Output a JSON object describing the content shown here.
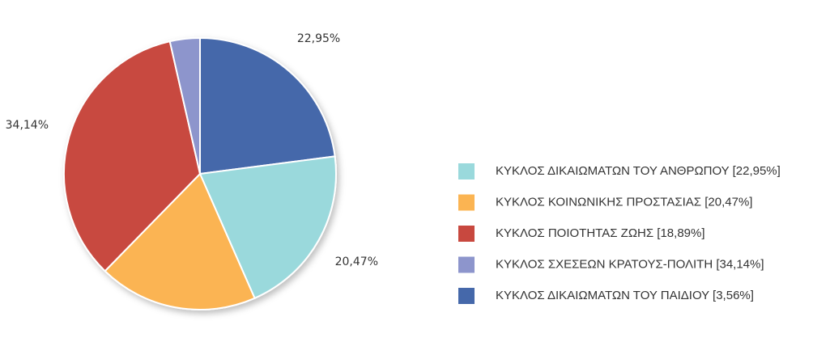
{
  "chart_data": {
    "type": "pie",
    "values": [
      22.95,
      20.47,
      18.89,
      34.14,
      3.56
    ],
    "value_labels": [
      "22,95%",
      "20,47%",
      "18,89%",
      "34,14%",
      "3,56%"
    ],
    "colors": [
      "#4568aa",
      "#9ad9dc",
      "#fbb452",
      "#c8483f",
      "#8d95cc"
    ],
    "legend": [
      {
        "label": "ΚΥΚΛΟΣ ΔΙΚΑΙΩΜΑΤΩΝ ΤΟΥ ΑΝΘΡΩΠΟΥ [22,95%]",
        "color": "#9ad9dc"
      },
      {
        "label": "ΚΥΚΛΟΣ ΚΟΙΝΩΝΙΚΗΣ ΠΡΟΣΤΑΣΙΑΣ [20,47%]",
        "color": "#fbb452"
      },
      {
        "label": "ΚΥΚΛΟΣ ΠΟΙΟΤΗΤΑΣ ΖΩΗΣ [18,89%]",
        "color": "#c8483f"
      },
      {
        "label": "ΚΥΚΛΟΣ ΣΧΕΣΕΩΝ ΚΡΑΤΟΥΣ-ΠΟΛΙΤΗ [34,14%]",
        "color": "#8d95cc"
      },
      {
        "label": "ΚΥΚΛΟΣ ΔΙΚΑΙΩΜΑΤΩΝ ΤΟΥ ΠΑΙΔΙΟΥ [3,56%]",
        "color": "#4568aa"
      }
    ]
  }
}
